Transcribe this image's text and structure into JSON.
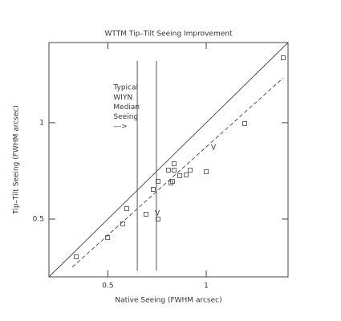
{
  "chart_data": {
    "type": "scatter",
    "title": "WTTM Tip–Tilt Seeing Improvement",
    "x_label": "Native Seeing (FWHM arcsec)",
    "y_label": "Tip–Tilt Seeing (FWHM arcsec)",
    "log_x": true,
    "log_y": true,
    "xlim": [
      0.33,
      1.78
    ],
    "ylim": [
      0.33,
      1.78
    ],
    "xticks": [
      0.5,
      1
    ],
    "yticks": [
      0.5,
      1
    ],
    "color": "#444444",
    "x": [
      0.4,
      0.499,
      0.555,
      0.571,
      0.654,
      0.688,
      0.712,
      0.712,
      0.766,
      0.779,
      0.788,
      0.797,
      0.797,
      0.83,
      0.868,
      0.893,
      1.0,
      1.312,
      1.72
    ],
    "values": [
      0.381,
      0.438,
      0.483,
      0.539,
      0.518,
      0.619,
      0.5,
      0.656,
      0.711,
      0.648,
      0.656,
      0.711,
      0.745,
      0.683,
      0.687,
      0.711,
      0.703,
      0.994,
      1.595
    ],
    "lines": [
      {
        "style": "solid",
        "x": [
          0.33,
          1.78
        ],
        "y": [
          0.33,
          1.78
        ]
      },
      {
        "style": "dashed",
        "x": [
          0.389,
          1.72
        ],
        "y": [
          0.354,
          1.38
        ]
      },
      {
        "style": "solid",
        "x": [
          0.615,
          0.615
        ],
        "y": [
          0.345,
          1.56
        ]
      },
      {
        "style": "solid",
        "x": [
          0.704,
          0.704
        ],
        "y": [
          0.345,
          1.56
        ]
      }
    ],
    "annotations": [
      {
        "text": "Typical",
        "x": 0.52,
        "y": 1.29
      },
      {
        "text": "WIYN",
        "x": 0.52,
        "y": 1.2
      },
      {
        "text": "Median",
        "x": 0.52,
        "y": 1.12
      },
      {
        "text": "Seeing",
        "x": 0.52,
        "y": 1.045
      },
      {
        "text": "--->",
        "x": 0.52,
        "y": 0.975
      },
      {
        "text": "V",
        "x": 0.696,
        "y": 0.521
      },
      {
        "text": "V",
        "x": 1.034,
        "y": 0.836
      }
    ]
  }
}
